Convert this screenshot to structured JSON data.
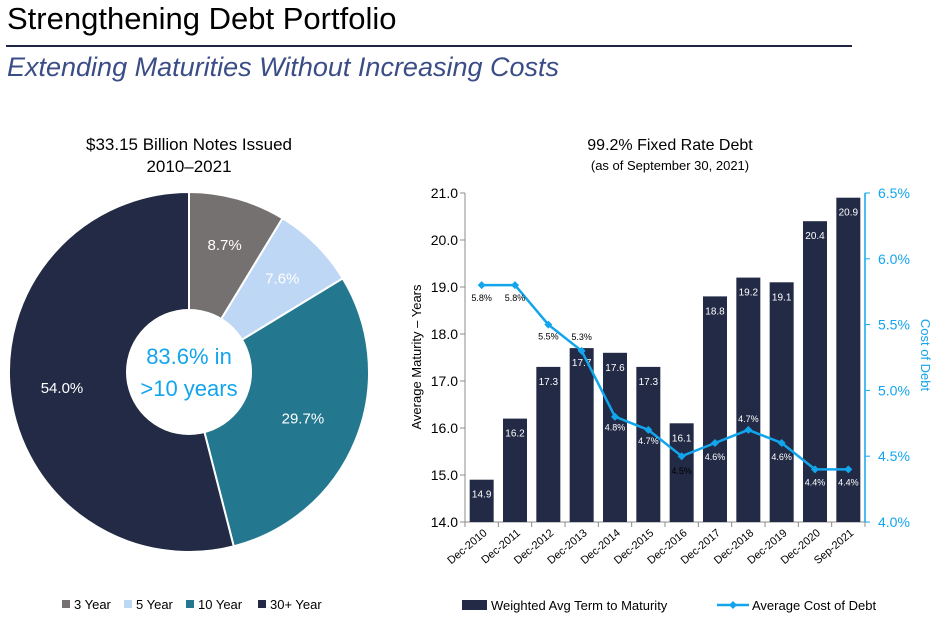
{
  "page": {
    "title": "Strengthening Debt Portfolio",
    "subtitle": "Extending Maturities Without Increasing Costs"
  },
  "colors": {
    "3 Year": "#767171",
    "5 Year": "#bdd7f5",
    "10 Year": "#237890",
    "30+ Year": "#222a45",
    "bars": "#222a45",
    "line": "#12a5ec",
    "title_rule": "#1f2544",
    "subtitle": "#3b4d86",
    "center_text": "#12a5ec"
  },
  "chart_data": [
    {
      "type": "pie",
      "title": "$33.15 Billion Notes Issued",
      "subtitle": "2010–2021",
      "center_label_line1": "83.6% in",
      "center_label_line2": ">10 years",
      "categories": [
        "3 Year",
        "5 Year",
        "10 Year",
        "30+ Year"
      ],
      "values": [
        8.7,
        7.6,
        29.7,
        54.0
      ],
      "labels": [
        "8.7%",
        "7.6%",
        "29.7%",
        "54.0%"
      ],
      "legend_position": "bottom"
    },
    {
      "type": "bar",
      "title": "99.2% Fixed Rate Debt",
      "subtitle": "(as of September 30, 2021)",
      "categories": [
        "Dec-2010",
        "Dec-2011",
        "Dec-2012",
        "Dec-2013",
        "Dec-2014",
        "Dec-2015",
        "Dec-2016",
        "Dec-2017",
        "Dec-2018",
        "Dec-2019",
        "Dec-2020",
        "Sep-2021"
      ],
      "series": [
        {
          "name": "Weighted Avg Term to Maturity",
          "type": "bar",
          "axis": "left",
          "values": [
            14.9,
            16.2,
            17.3,
            17.7,
            17.6,
            17.3,
            16.1,
            18.8,
            19.2,
            19.1,
            20.4,
            20.9
          ],
          "labels": [
            "14.9",
            "16.2",
            "17.3",
            "17.7",
            "17.6",
            "17.3",
            "16.1",
            "18.8",
            "19.2",
            "19.1",
            "20.4",
            "20.9"
          ]
        },
        {
          "name": "Average Cost of Debt",
          "type": "line",
          "axis": "right",
          "values": [
            5.8,
            5.8,
            5.5,
            5.3,
            4.8,
            4.7,
            4.5,
            4.6,
            4.7,
            4.6,
            4.4,
            4.4
          ],
          "labels": [
            "5.8%",
            "5.8%",
            "5.5%",
            "5.3%",
            "4.8%",
            "4.7%",
            "4.5%",
            "4.6%",
            "4.7%",
            "4.6%",
            "4.4%",
            "4.4%"
          ]
        }
      ],
      "ylabel": "Average Maturity – Years",
      "y2label": "Cost of Debt",
      "ylim": [
        14.0,
        21.0
      ],
      "y2lim": [
        4.0,
        6.5
      ],
      "yticks": [
        "14.0",
        "15.0",
        "16.0",
        "17.0",
        "18.0",
        "19.0",
        "20.0",
        "21.0"
      ],
      "y2ticks": [
        "4.0%",
        "4.5%",
        "5.0%",
        "5.5%",
        "6.0%",
        "6.5%"
      ],
      "grid": false,
      "legend_position": "bottom"
    }
  ]
}
